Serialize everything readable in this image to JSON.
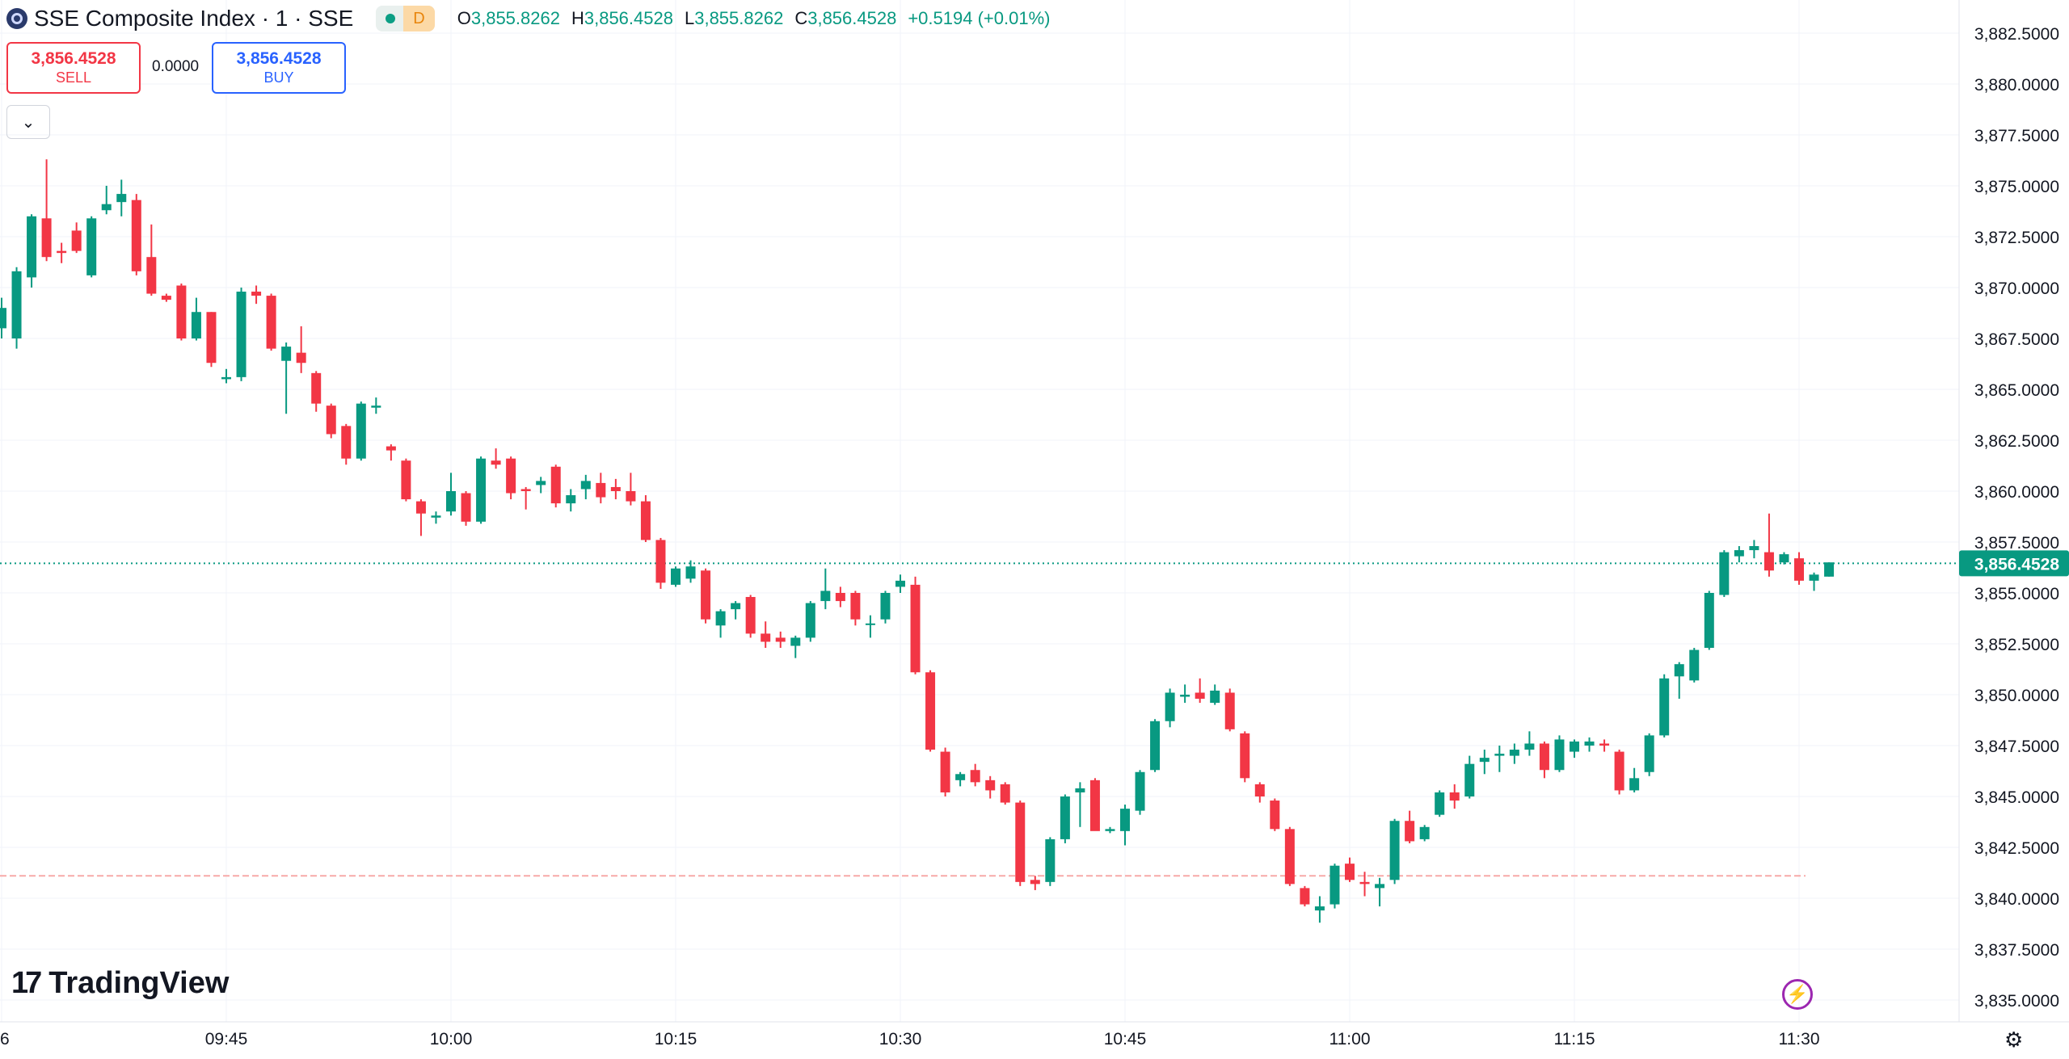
{
  "header": {
    "title": "SSE Composite Index · 1 · SSE",
    "status_letter": "D",
    "ohlc": {
      "o_label": "O",
      "o_value": "3,855.8262",
      "h_label": "H",
      "h_value": "3,856.4528",
      "l_label": "L",
      "l_value": "3,855.8262",
      "c_label": "C",
      "c_value": "3,856.4528",
      "change": "+0.5194 (+0.01%)"
    }
  },
  "trade": {
    "sell_price": "3,856.4528",
    "sell_label": "SELL",
    "spread": "0.0000",
    "buy_price": "3,856.4528",
    "buy_label": "BUY"
  },
  "branding": {
    "logo_text": "TradingView",
    "logo_mark": "17"
  },
  "icons": {
    "collapse": "chevron-down-icon",
    "lightning": "lightning-icon",
    "settings": "gear-icon"
  },
  "colors": {
    "up": "#089981",
    "down": "#f23645",
    "grid": "#f0f3fa",
    "axis_text": "#131722"
  },
  "chart_data": {
    "type": "candlestick",
    "price_axis_labels": [
      "3,882.5000",
      "3,880.0000",
      "3,877.5000",
      "3,875.0000",
      "3,872.5000",
      "3,870.0000",
      "3,867.5000",
      "3,865.0000",
      "3,862.5000",
      "3,860.0000",
      "3,857.5000",
      "3,855.0000",
      "3,852.5000",
      "3,850.0000",
      "3,847.5000",
      "3,845.0000",
      "3,842.5000",
      "3,840.0000",
      "3,837.5000",
      "3,835.0000"
    ],
    "price_ticks": [
      3882.5,
      3880,
      3877.5,
      3875,
      3872.5,
      3870,
      3867.5,
      3865,
      3862.5,
      3860,
      3857.5,
      3855,
      3852.5,
      3850,
      3847.5,
      3845,
      3842.5,
      3840,
      3837.5,
      3835
    ],
    "time_labels": [
      "6",
      "09:45",
      "10:00",
      "10:15",
      "10:30",
      "10:45",
      "11:00",
      "11:15",
      "11:30"
    ],
    "time_tick_minutes": [
      -15,
      0,
      15,
      30,
      45,
      60,
      75,
      90,
      105
    ],
    "current_price": 3856.4528,
    "current_price_label": "3,856.4528",
    "reference_line": 3841.1,
    "first_candle_minute": -15,
    "candles": [
      [
        3868,
        3869.5,
        3867.5,
        3869
      ],
      [
        3867.5,
        3871,
        3867,
        3870.8
      ],
      [
        3870.5,
        3873.6,
        3870,
        3873.5
      ],
      [
        3873.4,
        3876.3,
        3871.3,
        3871.5
      ],
      [
        3871.8,
        3872.2,
        3871.2,
        3871.7
      ],
      [
        3872.8,
        3873.2,
        3871.7,
        3871.8
      ],
      [
        3870.6,
        3873.5,
        3870.5,
        3873.4
      ],
      [
        3873.8,
        3875,
        3873.6,
        3874.1
      ],
      [
        3874.2,
        3875.3,
        3873.5,
        3874.6
      ],
      [
        3874.3,
        3874.6,
        3870.6,
        3870.8
      ],
      [
        3871.5,
        3873.1,
        3869.6,
        3869.7
      ],
      [
        3869.6,
        3869.7,
        3869.3,
        3869.4
      ],
      [
        3870.1,
        3870.2,
        3867.4,
        3867.5
      ],
      [
        3867.5,
        3869.5,
        3867.4,
        3868.8
      ],
      [
        3868.8,
        3868.8,
        3866.1,
        3866.3
      ],
      [
        3865.5,
        3866,
        3865.3,
        3865.6
      ],
      [
        3865.6,
        3870,
        3865.4,
        3869.8
      ],
      [
        3869.8,
        3870.1,
        3869.2,
        3869.6
      ],
      [
        3869.6,
        3869.7,
        3866.9,
        3867
      ],
      [
        3866.4,
        3867.3,
        3863.8,
        3867.1
      ],
      [
        3866.8,
        3868.1,
        3865.8,
        3866.3
      ],
      [
        3865.8,
        3865.9,
        3863.9,
        3864.3
      ],
      [
        3864.2,
        3864.3,
        3862.6,
        3862.8
      ],
      [
        3863.2,
        3863.3,
        3861.3,
        3861.6
      ],
      [
        3861.6,
        3864.4,
        3861.5,
        3864.3
      ],
      [
        3864.1,
        3864.6,
        3863.8,
        3864.2
      ],
      [
        3862.2,
        3862.3,
        3861.5,
        3862
      ],
      [
        3861.5,
        3861.6,
        3859.5,
        3859.6
      ],
      [
        3859.5,
        3859.6,
        3857.8,
        3858.9
      ],
      [
        3858.7,
        3859,
        3858.4,
        3858.8
      ],
      [
        3859,
        3860.9,
        3858.8,
        3860
      ],
      [
        3859.9,
        3860,
        3858.3,
        3858.5
      ],
      [
        3858.5,
        3861.7,
        3858.4,
        3861.6
      ],
      [
        3861.5,
        3862.1,
        3861.1,
        3861.3
      ],
      [
        3861.6,
        3861.7,
        3859.6,
        3859.9
      ],
      [
        3860.1,
        3860.2,
        3859.1,
        3860
      ],
      [
        3860.3,
        3860.7,
        3859.9,
        3860.5
      ],
      [
        3861.2,
        3861.3,
        3859.2,
        3859.4
      ],
      [
        3859.4,
        3860.1,
        3859,
        3859.8
      ],
      [
        3860.1,
        3860.8,
        3859.6,
        3860.5
      ],
      [
        3860.4,
        3860.9,
        3859.4,
        3859.7
      ],
      [
        3860.2,
        3860.6,
        3859.6,
        3860
      ],
      [
        3860,
        3860.9,
        3859.3,
        3859.5
      ],
      [
        3859.5,
        3859.8,
        3857.5,
        3857.6
      ],
      [
        3857.6,
        3857.7,
        3855.2,
        3855.5
      ],
      [
        3855.4,
        3856.3,
        3855.3,
        3856.2
      ],
      [
        3855.7,
        3856.6,
        3855.5,
        3856.3
      ],
      [
        3856.1,
        3856.2,
        3853.5,
        3853.7
      ],
      [
        3853.4,
        3854.2,
        3852.8,
        3854.1
      ],
      [
        3854.2,
        3854.6,
        3853.7,
        3854.5
      ],
      [
        3854.8,
        3854.9,
        3852.8,
        3853
      ],
      [
        3853,
        3853.6,
        3852.3,
        3852.6
      ],
      [
        3852.8,
        3853.1,
        3852.3,
        3852.6
      ],
      [
        3852.4,
        3852.9,
        3851.8,
        3852.8
      ],
      [
        3852.8,
        3854.6,
        3852.6,
        3854.5
      ],
      [
        3854.6,
        3856.2,
        3854.2,
        3855.1
      ],
      [
        3855,
        3855.3,
        3854.3,
        3854.6
      ],
      [
        3855,
        3855.1,
        3853.4,
        3853.7
      ],
      [
        3853.5,
        3853.9,
        3852.8,
        3853.5
      ],
      [
        3853.7,
        3855.1,
        3853.5,
        3855
      ],
      [
        3855.3,
        3855.9,
        3855,
        3855.6
      ],
      [
        3855.4,
        3855.8,
        3851,
        3851.1
      ],
      [
        3851.1,
        3851.2,
        3847.2,
        3847.3
      ],
      [
        3847.2,
        3847.4,
        3845,
        3845.2
      ],
      [
        3845.8,
        3846.2,
        3845.5,
        3846.1
      ],
      [
        3846.3,
        3846.6,
        3845.5,
        3845.7
      ],
      [
        3845.8,
        3846,
        3844.9,
        3845.3
      ],
      [
        3845.6,
        3845.7,
        3844.6,
        3844.7
      ],
      [
        3844.7,
        3844.8,
        3840.6,
        3840.8
      ],
      [
        3840.9,
        3841.1,
        3840.4,
        3840.7
      ],
      [
        3840.8,
        3843,
        3840.6,
        3842.9
      ],
      [
        3842.9,
        3845.1,
        3842.7,
        3845
      ],
      [
        3845.2,
        3845.7,
        3843.5,
        3845.4
      ],
      [
        3845.8,
        3845.9,
        3843.6,
        3843.3
      ],
      [
        3843.3,
        3843.5,
        3843.2,
        3843.4
      ],
      [
        3843.3,
        3844.6,
        3842.6,
        3844.4
      ],
      [
        3844.3,
        3846.3,
        3844.1,
        3846.2
      ],
      [
        3846.3,
        3848.8,
        3846.2,
        3848.7
      ],
      [
        3848.7,
        3850.3,
        3848.4,
        3850.1
      ],
      [
        3849.9,
        3850.5,
        3849.6,
        3850
      ],
      [
        3850.1,
        3850.8,
        3849.6,
        3849.8
      ],
      [
        3849.6,
        3850.5,
        3849.5,
        3850.2
      ],
      [
        3850.1,
        3850.3,
        3848.2,
        3848.3
      ],
      [
        3848.1,
        3848.2,
        3845.7,
        3845.9
      ],
      [
        3845.6,
        3845.7,
        3844.7,
        3845
      ],
      [
        3844.8,
        3844.9,
        3843.3,
        3843.4
      ],
      [
        3843.4,
        3843.5,
        3840.6,
        3840.7
      ],
      [
        3840.5,
        3840.6,
        3839.6,
        3839.7
      ],
      [
        3839.4,
        3840.1,
        3838.8,
        3839.6
      ],
      [
        3839.7,
        3841.7,
        3839.5,
        3841.6
      ],
      [
        3841.7,
        3842,
        3840.8,
        3840.9
      ],
      [
        3840.8,
        3841.3,
        3840.1,
        3840.7
      ],
      [
        3840.5,
        3841,
        3839.6,
        3840.7
      ],
      [
        3840.9,
        3843.9,
        3840.7,
        3843.8
      ],
      [
        3843.8,
        3844.3,
        3842.7,
        3842.8
      ],
      [
        3842.9,
        3843.6,
        3842.8,
        3843.5
      ],
      [
        3844.1,
        3845.3,
        3844,
        3845.2
      ],
      [
        3845.2,
        3845.6,
        3844.4,
        3844.8
      ],
      [
        3845,
        3847,
        3844.9,
        3846.6
      ],
      [
        3846.7,
        3847.3,
        3846.1,
        3846.9
      ],
      [
        3847,
        3847.5,
        3846.2,
        3847.1
      ],
      [
        3847,
        3847.6,
        3846.6,
        3847.3
      ],
      [
        3847.3,
        3848.2,
        3847,
        3847.6
      ],
      [
        3847.6,
        3847.7,
        3845.9,
        3846.3
      ],
      [
        3846.3,
        3848,
        3846.2,
        3847.8
      ],
      [
        3847.2,
        3847.8,
        3846.9,
        3847.7
      ],
      [
        3847.5,
        3847.9,
        3847.2,
        3847.7
      ],
      [
        3847.6,
        3847.8,
        3847.2,
        3847.5
      ],
      [
        3847.2,
        3847.3,
        3845.1,
        3845.3
      ],
      [
        3845.3,
        3846.4,
        3845.2,
        3845.9
      ],
      [
        3846.2,
        3848.1,
        3846,
        3848
      ],
      [
        3848,
        3851,
        3847.9,
        3850.8
      ],
      [
        3850.9,
        3851.6,
        3849.8,
        3851.5
      ],
      [
        3850.7,
        3852.3,
        3850.6,
        3852.2
      ],
      [
        3852.3,
        3855.1,
        3852.2,
        3855
      ],
      [
        3854.9,
        3857.1,
        3854.8,
        3857
      ],
      [
        3856.8,
        3857.3,
        3856.5,
        3857.1
      ],
      [
        3857.1,
        3857.6,
        3856.7,
        3857.3
      ],
      [
        3857,
        3858.9,
        3855.8,
        3856.1
      ],
      [
        3856.5,
        3857,
        3856.4,
        3856.9
      ],
      [
        3856.7,
        3857,
        3855.4,
        3855.6
      ],
      [
        3855.6,
        3856,
        3855.1,
        3855.9
      ],
      [
        3855.8,
        3856.5,
        3855.8,
        3856.5
      ]
    ]
  }
}
